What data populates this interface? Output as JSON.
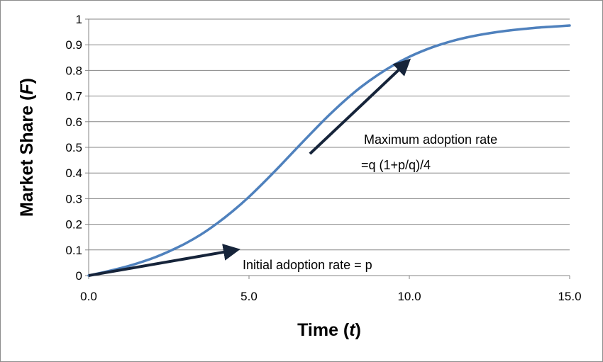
{
  "chart_data": {
    "type": "line",
    "title": "",
    "xlabel": {
      "prefix": "Time (",
      "var": "t",
      "suffix": ")"
    },
    "ylabel": {
      "prefix": "Market Share (",
      "var": "F",
      "suffix": ")"
    },
    "xlim": [
      0,
      15
    ],
    "ylim": [
      0,
      1
    ],
    "x_ticks": [
      "0.0",
      "5.0",
      "10.0",
      "15.0"
    ],
    "y_ticks": [
      "0",
      "0.1",
      "0.2",
      "0.3",
      "0.4",
      "0.5",
      "0.6",
      "0.7",
      "0.8",
      "0.9",
      "1"
    ],
    "grid": true,
    "legend": "none",
    "series": [
      {
        "color": "#4f81bd",
        "x": [
          0,
          0.5,
          1,
          1.5,
          2,
          2.5,
          3,
          3.5,
          4,
          4.5,
          5,
          5.5,
          6,
          6.5,
          7,
          7.5,
          8,
          8.5,
          9,
          9.5,
          10,
          10.5,
          11,
          11.5,
          12,
          12.5,
          13,
          13.5,
          14,
          14.5,
          15
        ],
        "y": [
          0,
          0.014,
          0.029,
          0.047,
          0.068,
          0.094,
          0.124,
          0.16,
          0.203,
          0.252,
          0.307,
          0.368,
          0.432,
          0.498,
          0.563,
          0.626,
          0.684,
          0.736,
          0.781,
          0.82,
          0.853,
          0.88,
          0.902,
          0.92,
          0.934,
          0.945,
          0.954,
          0.961,
          0.967,
          0.971,
          0.975
        ]
      }
    ],
    "annotations": [
      {
        "text": "Initial adoption rate = p",
        "arrow_from": [
          0,
          0
        ],
        "arrow_to": [
          4.6,
          0.1
        ]
      },
      {
        "text": "Maximum adoption rate",
        "text2": "=q  (1+p/q)/4",
        "arrow_from": [
          6.9,
          0.475
        ],
        "arrow_to": [
          9.95,
          0.835
        ]
      }
    ],
    "arrow_color": "#16243a"
  }
}
